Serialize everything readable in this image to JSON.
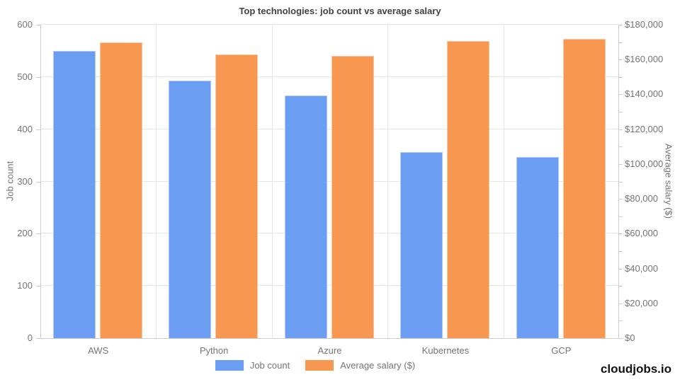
{
  "chart_data": {
    "type": "bar",
    "title": "Top technologies: job count vs average salary",
    "categories": [
      "AWS",
      "Python",
      "Azure",
      "Kubernetes",
      "GCP"
    ],
    "series": [
      {
        "name": "Job count",
        "axis": "left",
        "color": "#6B9EF2",
        "values": [
          550,
          493,
          465,
          356,
          347
        ]
      },
      {
        "name": "Average salary ($)",
        "axis": "right",
        "color": "#F89750",
        "values": [
          170000,
          163000,
          162000,
          170500,
          172000
        ]
      }
    ],
    "left_axis": {
      "label": "Job count",
      "min": 0,
      "max": 600,
      "tick_step": 100,
      "tick_labels": [
        "0",
        "100",
        "200",
        "300",
        "400",
        "500",
        "600"
      ]
    },
    "right_axis": {
      "label": "Average salary ($)",
      "min": 0,
      "max": 180000,
      "major_tick_step": 20000,
      "minor_tick_step": 10000,
      "tick_labels": [
        "$0",
        "$20,000",
        "$40,000",
        "$60,000",
        "$80,000",
        "$100,000",
        "$120,000",
        "$140,000",
        "$160,000",
        "$180,000"
      ]
    },
    "grid": true,
    "legend_position": "bottom"
  },
  "legend": {
    "items": [
      {
        "label": "Job count",
        "color": "#6B9EF2"
      },
      {
        "label": "Average salary ($)",
        "color": "#F89750"
      }
    ]
  },
  "branding": {
    "text": "cloudjobs.io"
  }
}
